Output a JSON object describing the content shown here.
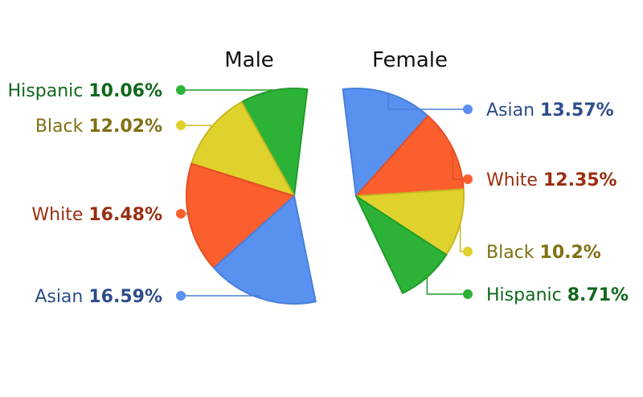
{
  "chart_data": {
    "type": "pie",
    "charts": [
      {
        "title": "Male",
        "slices": [
          {
            "name": "Hispanic",
            "value": 10.06,
            "label": "10.06%"
          },
          {
            "name": "Black",
            "value": 12.02,
            "label": "12.02%"
          },
          {
            "name": "White",
            "value": 16.48,
            "label": "16.48%"
          },
          {
            "name": "Asian",
            "value": 16.59,
            "label": "16.59%"
          }
        ]
      },
      {
        "title": "Female",
        "slices": [
          {
            "name": "Asian",
            "value": 13.57,
            "label": "13.57%"
          },
          {
            "name": "White",
            "value": 12.35,
            "label": "12.35%"
          },
          {
            "name": "Black",
            "value": 10.2,
            "label": "10.2%"
          },
          {
            "name": "Hispanic",
            "value": 8.71,
            "label": "8.71%"
          }
        ]
      }
    ],
    "colors": {
      "Asian": {
        "fill": "#5891f0",
        "stroke": "#4a7fd8",
        "text": "#2e4d8c"
      },
      "White": {
        "fill": "#fc5f2e",
        "stroke": "#e24f22",
        "text": "#9a2e10"
      },
      "Black": {
        "fill": "#e0d22c",
        "stroke": "#c8b820",
        "text": "#7f7012"
      },
      "Hispanic": {
        "fill": "#2cb337",
        "stroke": "#229a2c",
        "text": "#11671c"
      }
    }
  }
}
